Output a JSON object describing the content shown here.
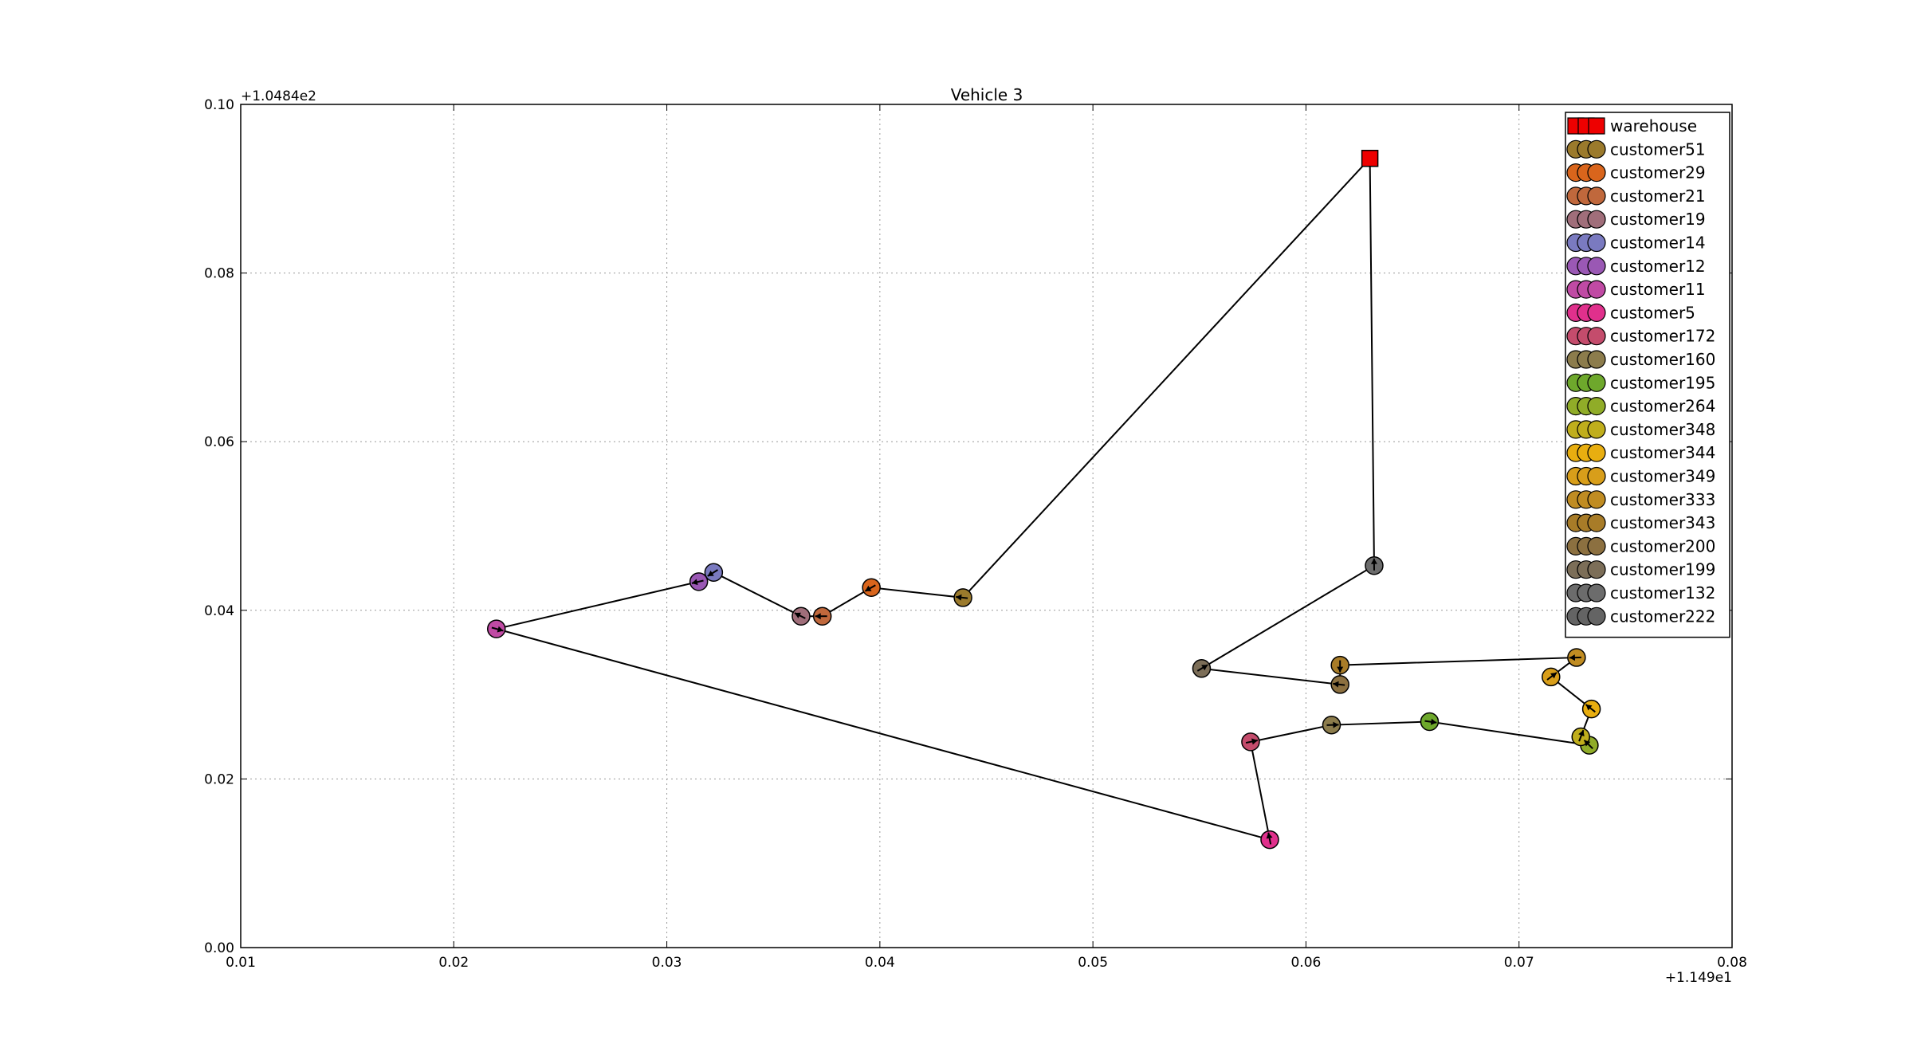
{
  "chart_data": {
    "type": "scatter",
    "title": "Vehicle 3",
    "xlabel": "",
    "ylabel": "",
    "x_offset_label": "+1.149e1",
    "y_offset_label": "+1.0484e2",
    "xlim": [
      0.01,
      0.08
    ],
    "ylim": [
      0.0,
      0.1
    ],
    "x_ticks": [
      0.01,
      0.02,
      0.03,
      0.04,
      0.05,
      0.06,
      0.07,
      0.08
    ],
    "x_tick_labels": [
      "0.01",
      "0.02",
      "0.03",
      "0.04",
      "0.05",
      "0.06",
      "0.07",
      "0.08"
    ],
    "y_ticks": [
      0.0,
      0.02,
      0.04,
      0.06,
      0.08,
      0.1
    ],
    "y_tick_labels": [
      "0.00",
      "0.02",
      "0.04",
      "0.06",
      "0.08",
      "0.10"
    ],
    "grid": true,
    "legend_position": "top-right",
    "route": [
      {
        "name": "warehouse",
        "x": 0.063,
        "y": 0.0936,
        "color": "#ee0000",
        "marker": "square"
      },
      {
        "name": "customer51",
        "x": 0.0439,
        "y": 0.0415,
        "color": "#9b7a2c",
        "marker": "circle"
      },
      {
        "name": "customer29",
        "x": 0.0396,
        "y": 0.0427,
        "color": "#d9651c",
        "marker": "circle"
      },
      {
        "name": "customer21",
        "x": 0.0373,
        "y": 0.0393,
        "color": "#c0683c",
        "marker": "circle"
      },
      {
        "name": "customer19",
        "x": 0.0363,
        "y": 0.0393,
        "color": "#a06e7a",
        "marker": "circle"
      },
      {
        "name": "customer14",
        "x": 0.0322,
        "y": 0.0445,
        "color": "#7a7ac0",
        "marker": "circle"
      },
      {
        "name": "customer12",
        "x": 0.0315,
        "y": 0.0434,
        "color": "#9a58b4",
        "marker": "circle"
      },
      {
        "name": "customer11",
        "x": 0.022,
        "y": 0.0378,
        "color": "#c04aa4",
        "marker": "circle"
      },
      {
        "name": "customer5",
        "x": 0.0583,
        "y": 0.0128,
        "color": "#e0308c",
        "marker": "circle"
      },
      {
        "name": "customer172",
        "x": 0.0574,
        "y": 0.0244,
        "color": "#c44c6c",
        "marker": "circle"
      },
      {
        "name": "customer160",
        "x": 0.0612,
        "y": 0.0264,
        "color": "#8c7c4c",
        "marker": "circle"
      },
      {
        "name": "customer195",
        "x": 0.0658,
        "y": 0.0268,
        "color": "#6ea82c",
        "marker": "circle"
      },
      {
        "name": "customer264",
        "x": 0.0733,
        "y": 0.024,
        "color": "#90ac28",
        "marker": "circle"
      },
      {
        "name": "customer348",
        "x": 0.0729,
        "y": 0.025,
        "color": "#c0ae1c",
        "marker": "circle"
      },
      {
        "name": "customer344",
        "x": 0.0734,
        "y": 0.0283,
        "color": "#e8ae10",
        "marker": "circle"
      },
      {
        "name": "customer349",
        "x": 0.0715,
        "y": 0.0321,
        "color": "#d89e1a",
        "marker": "circle"
      },
      {
        "name": "customer333",
        "x": 0.0727,
        "y": 0.0344,
        "color": "#c08c22",
        "marker": "circle"
      },
      {
        "name": "customer343",
        "x": 0.0616,
        "y": 0.0335,
        "color": "#a87c28",
        "marker": "circle"
      },
      {
        "name": "customer200",
        "x": 0.0616,
        "y": 0.0312,
        "color": "#8c7040",
        "marker": "circle"
      },
      {
        "name": "customer199",
        "x": 0.0551,
        "y": 0.0331,
        "color": "#7c6e58",
        "marker": "circle"
      },
      {
        "name": "customer132",
        "x": 0.0632,
        "y": 0.0453,
        "color": "#6c6c6c",
        "marker": "circle"
      },
      {
        "name": "warehouse",
        "x": 0.063,
        "y": 0.0936,
        "color": "#ee0000",
        "marker": "square"
      }
    ],
    "legend": [
      {
        "name": "warehouse",
        "color": "#ee0000",
        "marker": "square"
      },
      {
        "name": "customer51",
        "color": "#9b7a2c",
        "marker": "circle"
      },
      {
        "name": "customer29",
        "color": "#d9651c",
        "marker": "circle"
      },
      {
        "name": "customer21",
        "color": "#c0683c",
        "marker": "circle"
      },
      {
        "name": "customer19",
        "color": "#a06e7a",
        "marker": "circle"
      },
      {
        "name": "customer14",
        "color": "#7a7ac0",
        "marker": "circle"
      },
      {
        "name": "customer12",
        "color": "#9a58b4",
        "marker": "circle"
      },
      {
        "name": "customer11",
        "color": "#c04aa4",
        "marker": "circle"
      },
      {
        "name": "customer5",
        "color": "#e0308c",
        "marker": "circle"
      },
      {
        "name": "customer172",
        "color": "#c44c6c",
        "marker": "circle"
      },
      {
        "name": "customer160",
        "color": "#8c7c4c",
        "marker": "circle"
      },
      {
        "name": "customer195",
        "color": "#6ea82c",
        "marker": "circle"
      },
      {
        "name": "customer264",
        "color": "#90ac28",
        "marker": "circle"
      },
      {
        "name": "customer348",
        "color": "#c0ae1c",
        "marker": "circle"
      },
      {
        "name": "customer344",
        "color": "#e8ae10",
        "marker": "circle"
      },
      {
        "name": "customer349",
        "color": "#d89e1a",
        "marker": "circle"
      },
      {
        "name": "customer333",
        "color": "#c08c22",
        "marker": "circle"
      },
      {
        "name": "customer343",
        "color": "#a87c28",
        "marker": "circle"
      },
      {
        "name": "customer200",
        "color": "#8c7040",
        "marker": "circle"
      },
      {
        "name": "customer199",
        "color": "#7c6e58",
        "marker": "circle"
      },
      {
        "name": "customer132",
        "color": "#6c6c6c",
        "marker": "circle"
      },
      {
        "name": "customer222",
        "color": "#646464",
        "marker": "circle"
      }
    ]
  }
}
